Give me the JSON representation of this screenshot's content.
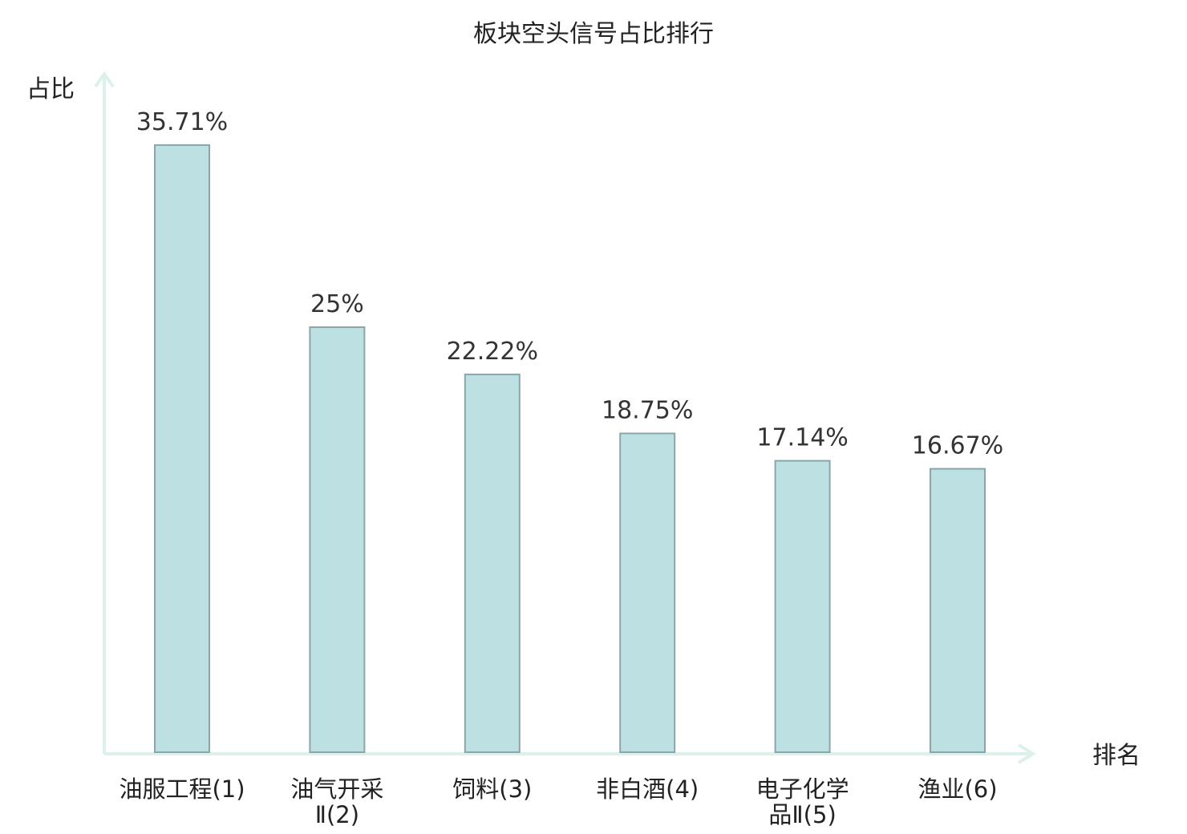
{
  "chart_data": {
    "type": "bar",
    "title": "板块空头信号占比排行",
    "ylabel": "占比",
    "xlabel": "排名",
    "ylim": [
      0,
      40
    ],
    "grid": false,
    "categories": [
      {
        "name": "油服工程",
        "rank": "(1)"
      },
      {
        "name": "油气开采",
        "rank": "Ⅱ(2)"
      },
      {
        "name": "饲料",
        "rank": "(3)"
      },
      {
        "name": "非白酒",
        "rank": "(4)"
      },
      {
        "name": "电子化学",
        "rank": "品Ⅱ(5)"
      },
      {
        "name": "渔业",
        "rank": "(6)"
      }
    ],
    "values": [
      35.71,
      25,
      22.22,
      18.75,
      17.14,
      16.67
    ],
    "value_labels": [
      "35.71%",
      "25%",
      "22.22%",
      "18.75%",
      "17.14%",
      "16.67%"
    ],
    "highlight_index": 5
  },
  "colors": {
    "bar_fill": "#bde0e3",
    "bar_stroke": "#8aa6a8",
    "axis": "#dcf0ec",
    "text": "#222222",
    "highlight_text": "#e01010"
  }
}
